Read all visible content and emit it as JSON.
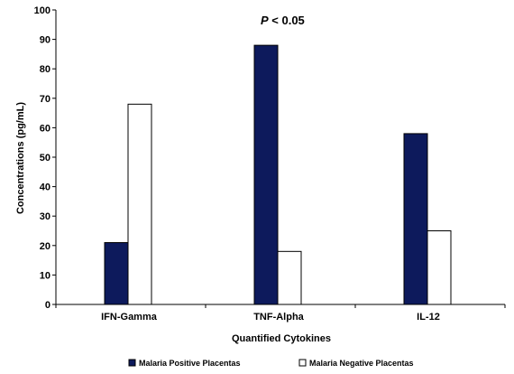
{
  "chart_data": {
    "type": "bar",
    "title": "",
    "categories": [
      "IFN-Gamma",
      "TNF-Alpha",
      "IL-12"
    ],
    "series": [
      {
        "name": "Malaria Positive Placentas",
        "values": [
          21,
          88,
          58
        ],
        "color": "#0d1a5c"
      },
      {
        "name": "Malaria Negative Placentas",
        "values": [
          68,
          18,
          25
        ],
        "color": "#ffffff"
      }
    ],
    "xlabel": "Quantified Cytokines",
    "ylabel": "Concentrations (pg/mL)",
    "ylim": [
      0,
      100
    ],
    "yticks": [
      0,
      10,
      20,
      30,
      40,
      50,
      60,
      70,
      80,
      90,
      100
    ],
    "annotation": {
      "prefix": "P",
      "text": " < 0.05"
    },
    "legend_position": "bottom",
    "grid": false
  }
}
